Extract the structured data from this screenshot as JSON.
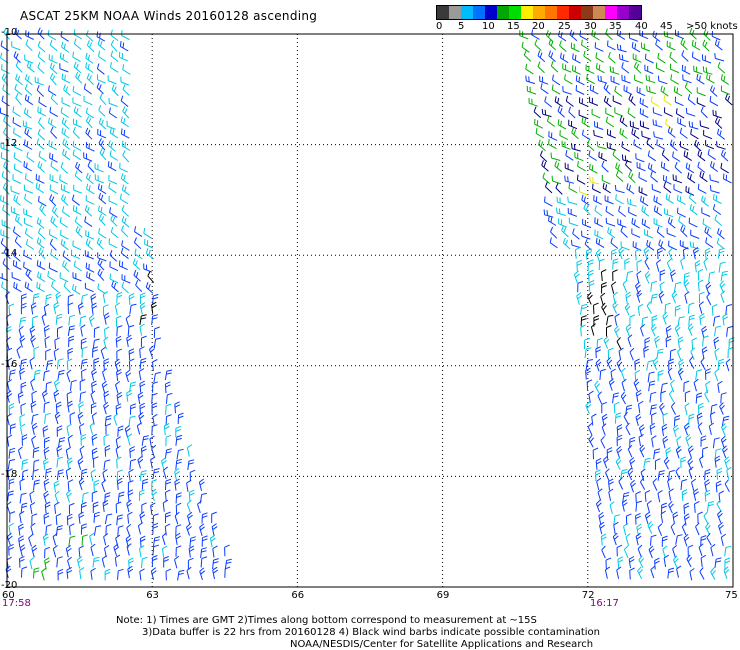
{
  "title": "ASCAT 25KM NOAA Winds 20160128 ascending",
  "legend": {
    "labels": [
      "0",
      "5",
      "10",
      "15",
      "20",
      "25",
      "30",
      "35",
      "40",
      "45",
      ">50 knots"
    ],
    "colors": [
      "#3a3a3a",
      "#9a9a9a",
      "#00bcff",
      "#0070ff",
      "#0000cc",
      "#00a800",
      "#00dd00",
      "#ffee00",
      "#ffaa00",
      "#ff7700",
      "#ff2a00",
      "#cc0000",
      "#8b3a1a",
      "#cc8855",
      "#ff00ff",
      "#9900cc",
      "#550099"
    ]
  },
  "axes": {
    "lat_labels": [
      "-10",
      "-12",
      "-14",
      "-16",
      "-18",
      "-20"
    ],
    "lon_labels": [
      "60",
      "63",
      "66",
      "69",
      "72",
      "75"
    ],
    "lon_range": [
      60,
      75
    ],
    "lat_range": [
      -20,
      -10
    ]
  },
  "pass_times": {
    "left": "17:58",
    "right": "16:17"
  },
  "notes": {
    "line1": "Note: 1) Times are GMT 2)Times along bottom correspond to measurement at ~15S",
    "line2": "3)Data buffer is 22 hrs from 20160128 4) Black wind barbs indicate possible contamination",
    "line3": "NOAA/NESDIS/Center for Satellite Applications and Research"
  },
  "barb_colors": {
    "cyan": "#00c8e6",
    "blue": "#0a3cff",
    "navy": "#000080",
    "green": "#00b000",
    "yellow": "#e6e600",
    "black": "#000000"
  }
}
